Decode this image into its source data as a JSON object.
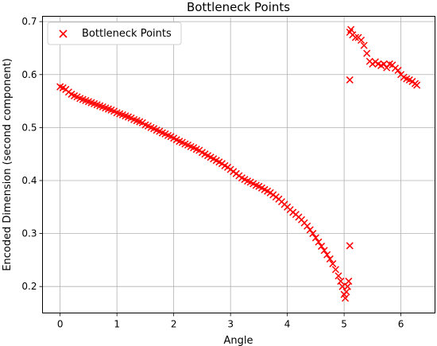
{
  "chart_data": {
    "type": "scatter",
    "title": "Bottleneck Points",
    "xlabel": "Angle",
    "ylabel": "Encoded Dimension (second component)",
    "xlim": [
      -0.31,
      6.6
    ],
    "ylim": [
      0.15,
      0.71
    ],
    "xticks": [
      0,
      1,
      2,
      3,
      4,
      5,
      6
    ],
    "yticks": [
      0.2,
      0.3,
      0.4,
      0.5,
      0.6,
      0.7
    ],
    "xtick_labels": [
      "0",
      "1",
      "2",
      "3",
      "4",
      "5",
      "6"
    ],
    "ytick_labels": [
      "0.2",
      "0.3",
      "0.4",
      "0.5",
      "0.6",
      "0.7"
    ],
    "grid": true,
    "legend_position": "top-left",
    "marker": "x",
    "color": "#ff0000",
    "series": [
      {
        "name": "Bottleneck Points",
        "points": [
          [
            0.0,
            0.577
          ],
          [
            0.05,
            0.575
          ],
          [
            0.1,
            0.572
          ],
          [
            0.15,
            0.567
          ],
          [
            0.2,
            0.563
          ],
          [
            0.25,
            0.56
          ],
          [
            0.3,
            0.558
          ],
          [
            0.35,
            0.555
          ],
          [
            0.4,
            0.553
          ],
          [
            0.45,
            0.551
          ],
          [
            0.5,
            0.549
          ],
          [
            0.55,
            0.547
          ],
          [
            0.6,
            0.545
          ],
          [
            0.65,
            0.543
          ],
          [
            0.7,
            0.541
          ],
          [
            0.75,
            0.539
          ],
          [
            0.8,
            0.537
          ],
          [
            0.85,
            0.535
          ],
          [
            0.9,
            0.533
          ],
          [
            0.95,
            0.531
          ],
          [
            1.0,
            0.528
          ],
          [
            1.05,
            0.526
          ],
          [
            1.1,
            0.524
          ],
          [
            1.15,
            0.522
          ],
          [
            1.2,
            0.52
          ],
          [
            1.25,
            0.518
          ],
          [
            1.3,
            0.515
          ],
          [
            1.35,
            0.513
          ],
          [
            1.4,
            0.511
          ],
          [
            1.45,
            0.509
          ],
          [
            1.5,
            0.505
          ],
          [
            1.55,
            0.503
          ],
          [
            1.6,
            0.5
          ],
          [
            1.65,
            0.498
          ],
          [
            1.7,
            0.495
          ],
          [
            1.75,
            0.493
          ],
          [
            1.8,
            0.49
          ],
          [
            1.85,
            0.488
          ],
          [
            1.9,
            0.485
          ],
          [
            1.95,
            0.483
          ],
          [
            2.0,
            0.48
          ],
          [
            2.05,
            0.477
          ],
          [
            2.1,
            0.474
          ],
          [
            2.15,
            0.472
          ],
          [
            2.2,
            0.469
          ],
          [
            2.25,
            0.467
          ],
          [
            2.3,
            0.464
          ],
          [
            2.35,
            0.462
          ],
          [
            2.4,
            0.459
          ],
          [
            2.45,
            0.457
          ],
          [
            2.5,
            0.453
          ],
          [
            2.55,
            0.45
          ],
          [
            2.6,
            0.447
          ],
          [
            2.65,
            0.444
          ],
          [
            2.7,
            0.441
          ],
          [
            2.75,
            0.438
          ],
          [
            2.8,
            0.435
          ],
          [
            2.85,
            0.432
          ],
          [
            2.9,
            0.428
          ],
          [
            2.95,
            0.425
          ],
          [
            3.0,
            0.421
          ],
          [
            3.05,
            0.417
          ],
          [
            3.1,
            0.413
          ],
          [
            3.15,
            0.409
          ],
          [
            3.2,
            0.405
          ],
          [
            3.25,
            0.402
          ],
          [
            3.3,
            0.399
          ],
          [
            3.35,
            0.397
          ],
          [
            3.4,
            0.394
          ],
          [
            3.45,
            0.391
          ],
          [
            3.5,
            0.389
          ],
          [
            3.55,
            0.386
          ],
          [
            3.6,
            0.383
          ],
          [
            3.65,
            0.38
          ],
          [
            3.7,
            0.377
          ],
          [
            3.75,
            0.373
          ],
          [
            3.8,
            0.369
          ],
          [
            3.85,
            0.365
          ],
          [
            3.9,
            0.36
          ],
          [
            3.95,
            0.355
          ],
          [
            4.0,
            0.35
          ],
          [
            4.05,
            0.345
          ],
          [
            4.1,
            0.34
          ],
          [
            4.15,
            0.336
          ],
          [
            4.2,
            0.331
          ],
          [
            4.25,
            0.326
          ],
          [
            4.3,
            0.32
          ],
          [
            4.35,
            0.314
          ],
          [
            4.4,
            0.307
          ],
          [
            4.45,
            0.3
          ],
          [
            4.5,
            0.292
          ],
          [
            4.55,
            0.284
          ],
          [
            4.6,
            0.276
          ],
          [
            4.65,
            0.268
          ],
          [
            4.7,
            0.26
          ],
          [
            4.75,
            0.252
          ],
          [
            4.8,
            0.243
          ],
          [
            4.85,
            0.232
          ],
          [
            4.9,
            0.22
          ],
          [
            4.94,
            0.21
          ],
          [
            4.97,
            0.2
          ],
          [
            5.0,
            0.185
          ],
          [
            5.02,
            0.178
          ],
          [
            5.04,
            0.19
          ],
          [
            5.06,
            0.2
          ],
          [
            5.08,
            0.21
          ],
          [
            5.1,
            0.59
          ],
          [
            5.1,
            0.277
          ],
          [
            5.1,
            0.68
          ],
          [
            5.12,
            0.685
          ],
          [
            5.15,
            0.675
          ],
          [
            5.2,
            0.67
          ],
          [
            5.25,
            0.67
          ],
          [
            5.3,
            0.665
          ],
          [
            5.35,
            0.655
          ],
          [
            5.4,
            0.64
          ],
          [
            5.45,
            0.625
          ],
          [
            5.5,
            0.62
          ],
          [
            5.55,
            0.624
          ],
          [
            5.6,
            0.62
          ],
          [
            5.65,
            0.617
          ],
          [
            5.7,
            0.62
          ],
          [
            5.75,
            0.613
          ],
          [
            5.8,
            0.62
          ],
          [
            5.85,
            0.618
          ],
          [
            5.9,
            0.612
          ],
          [
            5.95,
            0.608
          ],
          [
            6.0,
            0.6
          ],
          [
            6.05,
            0.595
          ],
          [
            6.1,
            0.592
          ],
          [
            6.15,
            0.59
          ],
          [
            6.2,
            0.587
          ],
          [
            6.25,
            0.583
          ],
          [
            6.28,
            0.58
          ]
        ]
      }
    ]
  }
}
